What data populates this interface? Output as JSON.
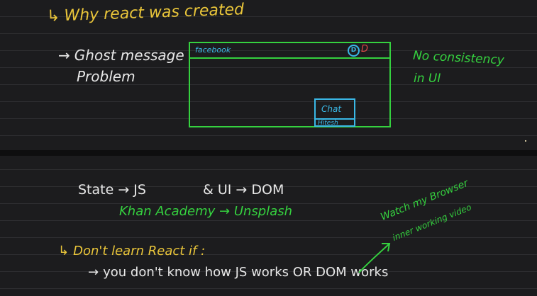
{
  "notes": {
    "heading": "Why react was created",
    "ghost_line1": "Ghost message",
    "ghost_line2": "Problem",
    "consistency_line1": "No consistency",
    "consistency_line2": "in UI",
    "state_js": "State → JS",
    "ui_dom": "& UI → DOM",
    "khan": "Khan Academy → Unsplash",
    "dont_learn": "Don't learn React if :",
    "dont_know": "you don't know how JS works OR DOM works",
    "watch_line1": "Watch my Browser",
    "watch_line2": "inner working video"
  },
  "mock_browser": {
    "site_label": "facebook",
    "avatar_letter": "D",
    "badge_letter": "D",
    "chat_title": "Chat",
    "chat_user": "Hitesh"
  },
  "glyphs": {
    "bullet_arrow": "↳",
    "list_arrow": "→"
  },
  "colors": {
    "yellow": "#e9c53a",
    "white": "#e8e8e8",
    "green": "#35d13f",
    "blue": "#3ab8e6",
    "red": "#e04848",
    "background": "#1c1c1e"
  }
}
